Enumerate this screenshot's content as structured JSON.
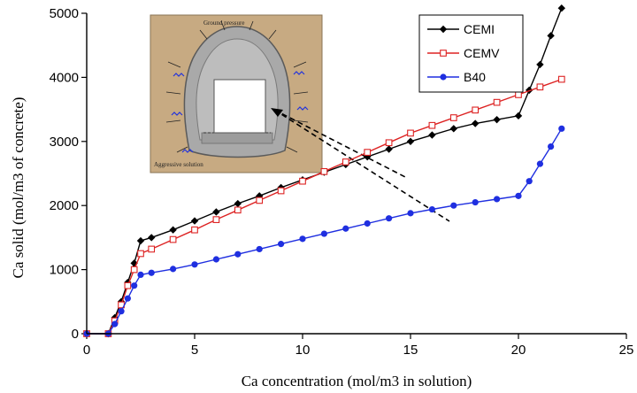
{
  "chart_data": {
    "type": "line",
    "title": "",
    "xlabel": "Ca concentration (mol/m3 in solution)",
    "ylabel": "Ca solid (mol/m3 of concrete)",
    "xlim": [
      0,
      25
    ],
    "ylim": [
      0,
      5000
    ],
    "xticks": [
      0,
      5,
      10,
      15,
      20,
      25
    ],
    "yticks": [
      0,
      1000,
      2000,
      3000,
      4000,
      5000
    ],
    "grid": false,
    "legend_position": "top-right",
    "series": [
      {
        "name": "CEMI",
        "color": "#000000",
        "marker": "diamond",
        "x": [
          0,
          1,
          1.3,
          1.6,
          1.9,
          2.2,
          2.5,
          3,
          4,
          5,
          6,
          7,
          8,
          9,
          10,
          11,
          12,
          13,
          14,
          15,
          16,
          17,
          18,
          19,
          20,
          20.5,
          21,
          21.5,
          22
        ],
        "y": [
          0,
          0,
          250,
          500,
          800,
          1100,
          1450,
          1500,
          1620,
          1760,
          1900,
          2030,
          2150,
          2280,
          2400,
          2520,
          2640,
          2760,
          2880,
          3000,
          3100,
          3200,
          3280,
          3340,
          3400,
          3800,
          4200,
          4650,
          5080
        ]
      },
      {
        "name": "CEMV",
        "color": "#dd2222",
        "marker": "square-open",
        "x": [
          0,
          1,
          1.3,
          1.6,
          1.9,
          2.2,
          2.5,
          3,
          4,
          5,
          6,
          7,
          8,
          9,
          10,
          11,
          12,
          13,
          14,
          15,
          16,
          17,
          18,
          19,
          20,
          21,
          22
        ],
        "y": [
          0,
          0,
          200,
          450,
          750,
          1000,
          1250,
          1320,
          1470,
          1620,
          1780,
          1930,
          2080,
          2230,
          2380,
          2530,
          2680,
          2830,
          2980,
          3130,
          3250,
          3370,
          3490,
          3610,
          3730,
          3850,
          3970
        ]
      },
      {
        "name": "B40",
        "color": "#1f2fe0",
        "marker": "circle",
        "x": [
          0,
          1,
          1.3,
          1.6,
          1.9,
          2.2,
          2.5,
          3,
          4,
          5,
          6,
          7,
          8,
          9,
          10,
          11,
          12,
          13,
          14,
          15,
          16,
          17,
          18,
          19,
          20,
          20.5,
          21,
          21.5,
          22
        ],
        "y": [
          0,
          0,
          150,
          350,
          550,
          750,
          920,
          950,
          1010,
          1080,
          1160,
          1240,
          1320,
          1400,
          1480,
          1560,
          1640,
          1720,
          1800,
          1880,
          1940,
          2000,
          2050,
          2100,
          2150,
          2380,
          2650,
          2920,
          3200
        ]
      }
    ],
    "inset": {
      "labels": [
        "Ground pressure",
        "Aggressive solution"
      ]
    }
  }
}
